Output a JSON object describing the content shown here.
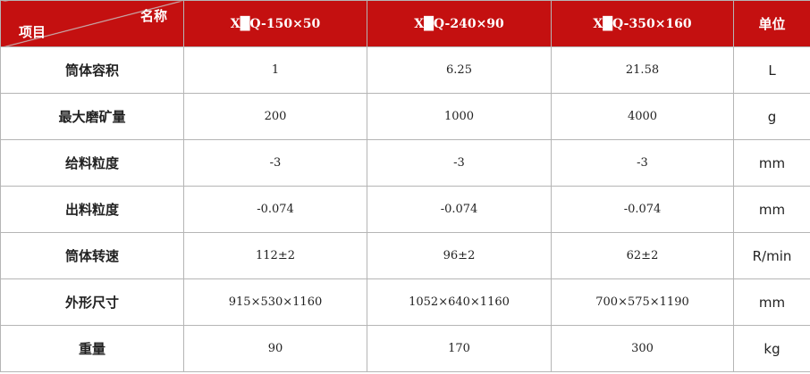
{
  "header": {
    "corner_top": "名称",
    "corner_bottom": "项目",
    "models": [
      "X█Q-150×50",
      "X█Q-240×90",
      "X█Q-350×160"
    ],
    "unit": "单位"
  },
  "rows": [
    {
      "label": "筒体容积",
      "values": [
        "1",
        "6.25",
        "21.58"
      ],
      "unit": "L"
    },
    {
      "label": "最大磨矿量",
      "values": [
        "200",
        "1000",
        "4000"
      ],
      "unit": "g"
    },
    {
      "label": "给料粒度",
      "values": [
        "-3",
        "-3",
        "-3"
      ],
      "unit": "mm"
    },
    {
      "label": "出料粒度",
      "values": [
        "-0.074",
        "-0.074",
        "-0.074"
      ],
      "unit": "mm"
    },
    {
      "label": "筒体转速",
      "values": [
        "112±2",
        "96±2",
        "62±2"
      ],
      "unit": "R/min"
    },
    {
      "label": "外形尺寸",
      "values": [
        "915×530×1160",
        "1052×640×1160",
        "700×575×1190"
      ],
      "unit": "mm"
    },
    {
      "label": "重量",
      "values": [
        "90",
        "170",
        "300"
      ],
      "unit": "kg"
    }
  ],
  "colors": {
    "header_bg": "#c41010",
    "border": "#b5b5b5"
  }
}
